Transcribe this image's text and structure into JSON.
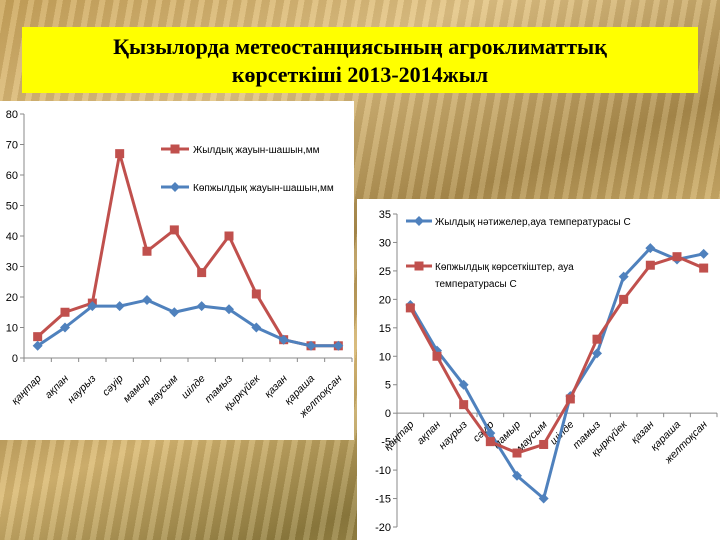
{
  "title_line1": "Қызылорда метеостанциясының агроклиматтық",
  "title_line2": "көрсеткіші 2013-2014жыл",
  "chart_data": [
    {
      "type": "line",
      "categories": [
        "қаңтар",
        "ақпан",
        "наурыз",
        "сәуір",
        "мамыр",
        "маусым",
        "шілде",
        "тамыз",
        "қыркүйек",
        "қазан",
        "қараша",
        "желтоқсан"
      ],
      "ylim": [
        0,
        80
      ],
      "yticks": [
        0,
        10,
        20,
        30,
        40,
        50,
        60,
        70,
        80
      ],
      "legend_position": "top-right",
      "series": [
        {
          "name": "Жылдық жауын-шашын,мм",
          "color": "#c0504d",
          "marker": "square",
          "values": [
            7,
            15,
            18,
            67,
            35,
            42,
            28,
            40,
            21,
            6,
            4,
            4
          ]
        },
        {
          "name": "Көпжылдық жауын-шашын,мм",
          "color": "#4f81bd",
          "marker": "diamond",
          "values": [
            4,
            10,
            17,
            17,
            19,
            15,
            17,
            16,
            10,
            6,
            4,
            4
          ]
        }
      ]
    },
    {
      "type": "line",
      "categories": [
        "қаңтар",
        "ақпан",
        "наурыз",
        "сәуір",
        "мамыр",
        "маусым",
        "шілде",
        "тамыз",
        "қыркүйек",
        "қазан",
        "қараша",
        "желтоқсан"
      ],
      "ylim": [
        -20,
        35
      ],
      "yticks": [
        -20,
        -15,
        -10,
        -5,
        0,
        5,
        10,
        15,
        20,
        25,
        30,
        35
      ],
      "legend_position": "top-left",
      "series": [
        {
          "name": "Жылдық нәтижелер,ауа температурасы С",
          "color": "#4f81bd",
          "marker": "diamond",
          "values": [
            19,
            11,
            5,
            -3.5,
            -11,
            -15,
            3,
            10.5,
            24,
            29,
            27,
            28
          ]
        },
        {
          "name_line1": "Көпжылдық көрсеткіштер, ауа",
          "name_line2": "температурасы С",
          "color": "#c0504d",
          "marker": "square",
          "values": [
            18.5,
            10,
            1.5,
            -5,
            -7,
            -5.5,
            2.5,
            13,
            20,
            26,
            27.5,
            25.5
          ]
        }
      ]
    }
  ]
}
